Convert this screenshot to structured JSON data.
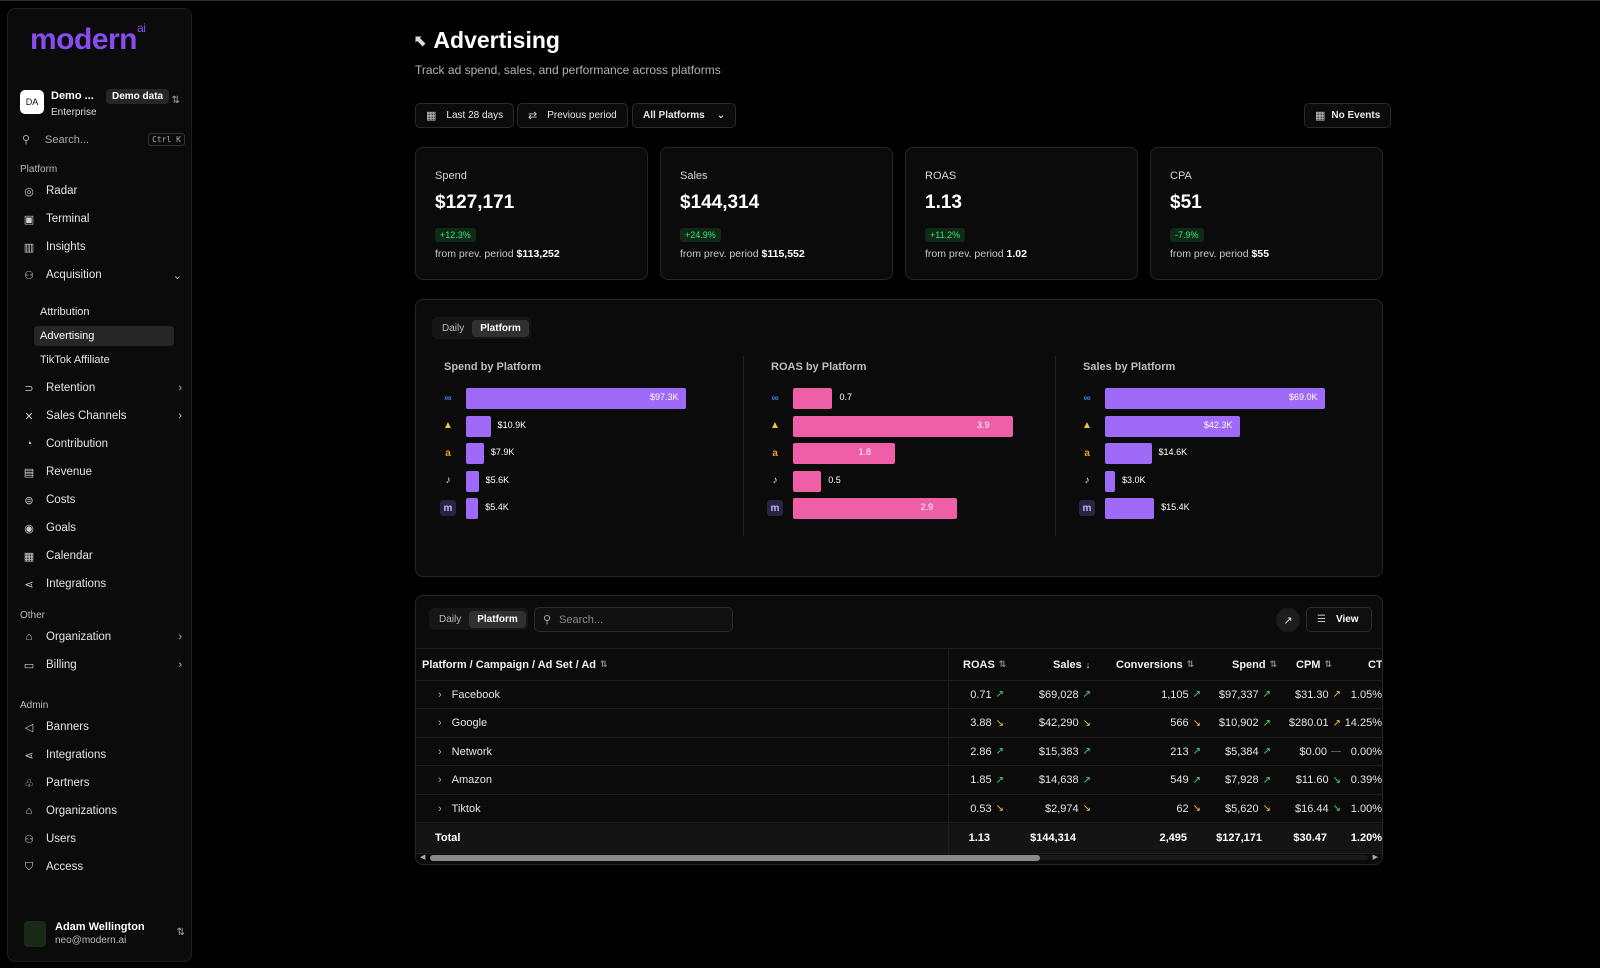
{
  "sidebar": {
    "logo": "modern",
    "logo_sup": "ai",
    "org": {
      "initials": "DA",
      "name": "Demo ...",
      "badge": "Demo data",
      "tier": "Enterprise"
    },
    "search": {
      "placeholder": "Search...",
      "shortcut": "Ctrl K"
    },
    "sections": {
      "platform": "Platform",
      "other": "Other",
      "admin": "Admin"
    },
    "platform_items": {
      "radar": "Radar",
      "terminal": "Terminal",
      "insights": "Insights",
      "acquisition": "Acquisition",
      "attribution": "Attribution",
      "advertising": "Advertising",
      "tiktok_affiliate": "TikTok Affiliate",
      "retention": "Retention",
      "sales_channels": "Sales Channels",
      "contribution": "Contribution",
      "revenue": "Revenue",
      "costs": "Costs",
      "goals": "Goals",
      "calendar": "Calendar",
      "integrations": "Integrations"
    },
    "other_items": {
      "organization": "Organization",
      "billing": "Billing"
    },
    "admin_items": {
      "banners": "Banners",
      "integrations": "Integrations",
      "partners": "Partners",
      "organizations": "Organizations",
      "users": "Users",
      "access": "Access"
    },
    "user": {
      "name": "Adam Wellington",
      "email": "neo@modern.ai"
    }
  },
  "header": {
    "title": "Advertising",
    "subtitle": "Track ad spend, sales, and performance across platforms"
  },
  "filters": {
    "date_range": "Last 28 days",
    "compare": "Previous period",
    "platform": "All Platforms",
    "events": "No Events"
  },
  "kpis": {
    "spend": {
      "label": "Spend",
      "value": "$127,171",
      "delta": "+12.3%",
      "prev_label": "from prev. period",
      "prev_value": "$113,252"
    },
    "sales": {
      "label": "Sales",
      "value": "$144,314",
      "delta": "+24.9%",
      "prev_label": "from prev. period",
      "prev_value": "$115,552"
    },
    "roas": {
      "label": "ROAS",
      "value": "1.13",
      "delta": "+11.2%",
      "prev_label": "from prev. period",
      "prev_value": "1.02"
    },
    "cpa": {
      "label": "CPA",
      "value": "$51",
      "delta": "-7.9%",
      "prev_label": "from prev. period",
      "prev_value": "$55"
    }
  },
  "chart_tabs": {
    "daily": "Daily",
    "platform": "Platform"
  },
  "chart_data": [
    {
      "type": "bar",
      "title": "Spend by Platform",
      "categories": [
        "meta",
        "google",
        "amazon",
        "tiktok",
        "network"
      ],
      "values": [
        97.3,
        10.9,
        7.9,
        5.6,
        5.4
      ],
      "labels": [
        "$97.3K",
        "$10.9K",
        "$7.9K",
        "$5.6K",
        "$5.4K"
      ],
      "color": "#a06af8"
    },
    {
      "type": "bar",
      "title": "ROAS by Platform",
      "categories": [
        "meta",
        "google",
        "amazon",
        "tiktok",
        "network"
      ],
      "values": [
        0.7,
        3.9,
        1.8,
        0.5,
        2.9
      ],
      "labels": [
        "0.7",
        "3.9",
        "1.8",
        "0.5",
        "2.9"
      ],
      "color": "#ef5fa7"
    },
    {
      "type": "bar",
      "title": "Sales by Platform",
      "categories": [
        "meta",
        "google",
        "amazon",
        "tiktok",
        "network"
      ],
      "values": [
        69.0,
        42.3,
        14.6,
        3.0,
        15.4
      ],
      "labels": [
        "$69.0K",
        "$42.3K",
        "$14.6K",
        "$3.0K",
        "$15.4K"
      ],
      "color": "#a06af8"
    }
  ],
  "table": {
    "tabs": {
      "daily": "Daily",
      "platform": "Platform"
    },
    "search_placeholder": "Search...",
    "view_label": "View",
    "columns": {
      "name": "Platform / Campaign / Ad Set / Ad",
      "roas": "ROAS",
      "sales": "Sales",
      "conversions": "Conversions",
      "spend": "Spend",
      "cpm": "CPM",
      "ctr": "CTR"
    },
    "rows": [
      {
        "name": "Facebook",
        "roas": "0.71",
        "roas_t": "up",
        "sales": "$69,028",
        "sales_t": "up",
        "conv": "1,105",
        "conv_t": "up",
        "spend": "$97,337",
        "spend_t": "up",
        "cpm": "$31.30",
        "cpm_t": "down-up",
        "ctr": "1.05%"
      },
      {
        "name": "Google",
        "roas": "3.88",
        "roas_t": "down",
        "sales": "$42,290",
        "sales_t": "down",
        "conv": "566",
        "conv_t": "down",
        "spend": "$10,902",
        "spend_t": "up",
        "cpm": "$280.01",
        "cpm_t": "down-up",
        "ctr": "14.25%"
      },
      {
        "name": "Network",
        "roas": "2.86",
        "roas_t": "up",
        "sales": "$15,383",
        "sales_t": "up",
        "conv": "213",
        "conv_t": "up",
        "spend": "$5,384",
        "spend_t": "up",
        "cpm": "$0.00",
        "cpm_t": "flat",
        "ctr": "0.00%"
      },
      {
        "name": "Amazon",
        "roas": "1.85",
        "roas_t": "up",
        "sales": "$14,638",
        "sales_t": "up",
        "conv": "549",
        "conv_t": "up",
        "spend": "$7,928",
        "spend_t": "up",
        "cpm": "$11.60",
        "cpm_t": "up-down",
        "ctr": "0.39%"
      },
      {
        "name": "Tiktok",
        "roas": "0.53",
        "roas_t": "down",
        "sales": "$2,974",
        "sales_t": "down",
        "conv": "62",
        "conv_t": "down",
        "spend": "$5,620",
        "spend_t": "down",
        "cpm": "$16.44",
        "cpm_t": "up-down",
        "ctr": "1.00%"
      }
    ],
    "total": {
      "name": "Total",
      "roas": "1.13",
      "sales": "$144,314",
      "conv": "2,495",
      "spend": "$127,171",
      "cpm": "$30.47",
      "ctr": "1.20%"
    }
  }
}
